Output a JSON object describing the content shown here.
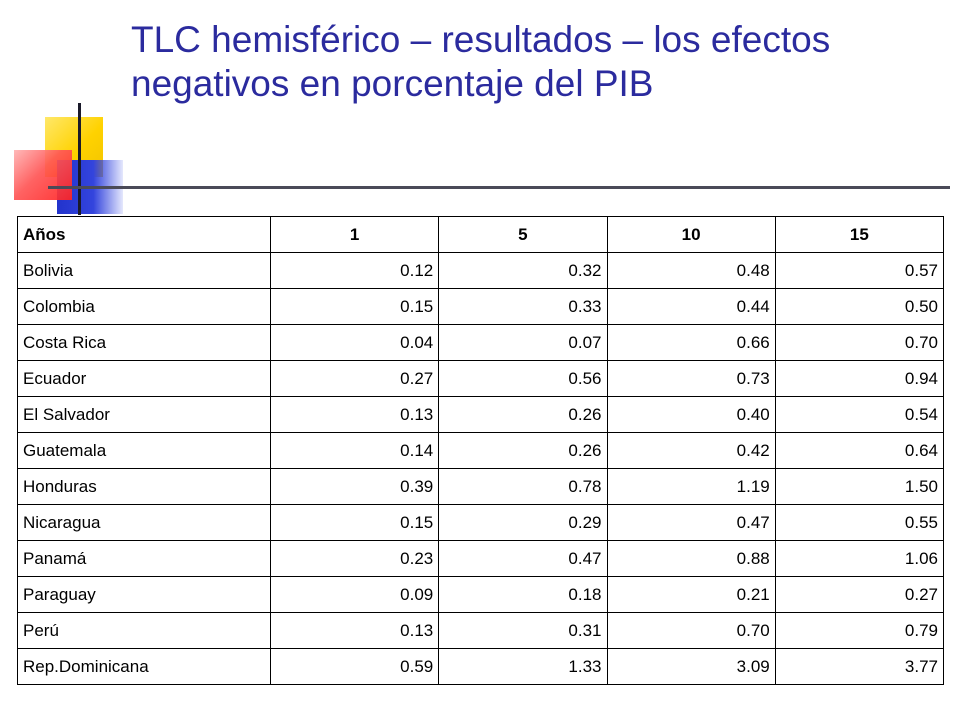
{
  "slide": {
    "title": "TLC hemisférico – resultados – los efectos negativos en porcentaje del PIB"
  },
  "table": {
    "headers": [
      "Años",
      "1",
      "5",
      "10",
      "15"
    ],
    "rows": [
      {
        "country": "Bolivia",
        "values": [
          "0.12",
          "0.32",
          "0.48",
          "0.57"
        ]
      },
      {
        "country": "Colombia",
        "values": [
          "0.15",
          "0.33",
          "0.44",
          "0.50"
        ]
      },
      {
        "country": "Costa Rica",
        "values": [
          "0.04",
          "0.07",
          "0.66",
          "0.70"
        ]
      },
      {
        "country": "Ecuador",
        "values": [
          "0.27",
          "0.56",
          "0.73",
          "0.94"
        ]
      },
      {
        "country": "El Salvador",
        "values": [
          "0.13",
          "0.26",
          "0.40",
          "0.54"
        ]
      },
      {
        "country": "Guatemala",
        "values": [
          "0.14",
          "0.26",
          "0.42",
          "0.64"
        ]
      },
      {
        "country": "Honduras",
        "values": [
          "0.39",
          "0.78",
          "1.19",
          "1.50"
        ]
      },
      {
        "country": "Nicaragua",
        "values": [
          "0.15",
          "0.29",
          "0.47",
          "0.55"
        ]
      },
      {
        "country": "Panamá",
        "values": [
          "0.23",
          "0.47",
          "0.88",
          "1.06"
        ]
      },
      {
        "country": "Paraguay",
        "values": [
          "0.09",
          "0.18",
          "0.21",
          "0.27"
        ]
      },
      {
        "country": "Perú",
        "values": [
          "0.13",
          "0.31",
          "0.70",
          "0.79"
        ]
      },
      {
        "country": "Rep.Dominicana",
        "values": [
          "0.59",
          "1.33",
          "3.09",
          "3.77"
        ]
      }
    ]
  },
  "colors": {
    "title": "#2b2b9e",
    "deco_yellow": "#ffd200",
    "deco_blue": "#2233cc",
    "deco_red": "#ff3333",
    "rule": "#4a4a58"
  }
}
